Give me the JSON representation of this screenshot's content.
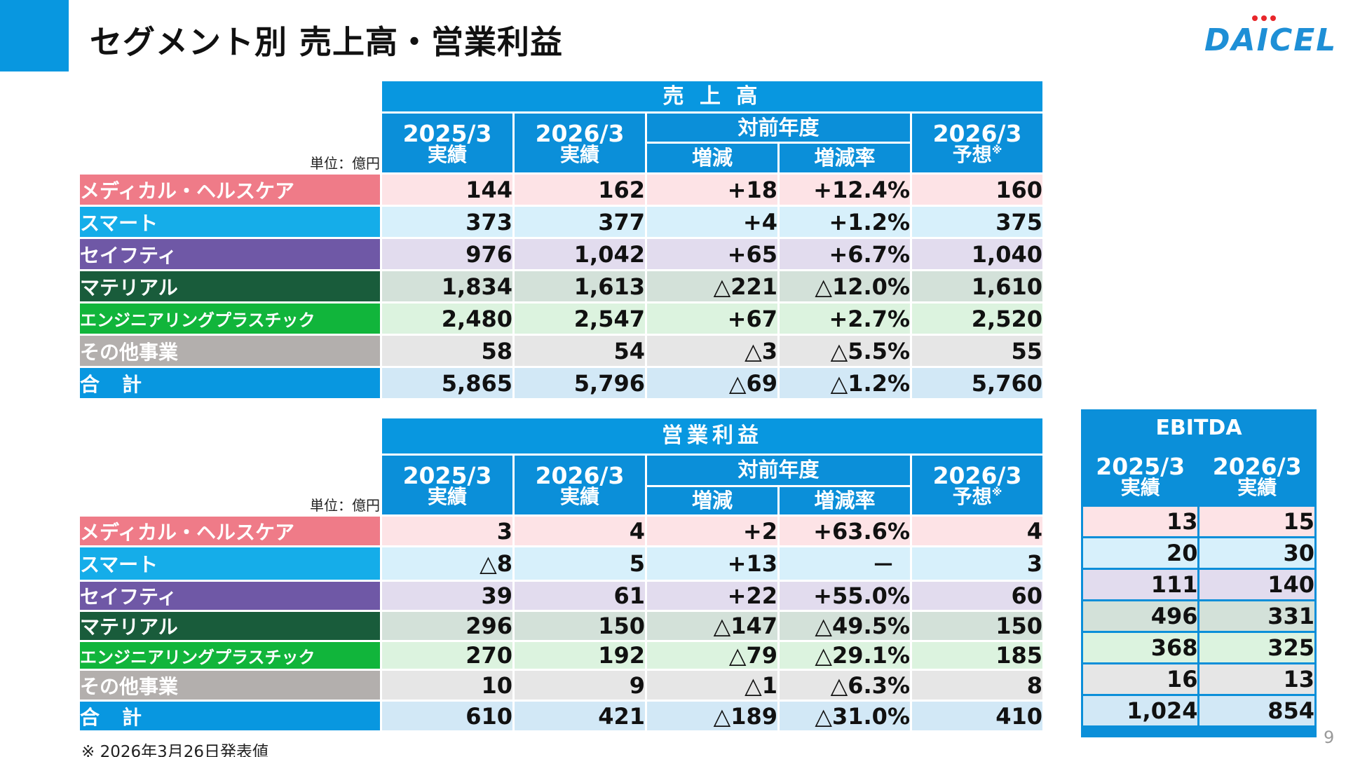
{
  "title": "セグメント別 売上高・営業利益",
  "logo": {
    "text": "DAICEL"
  },
  "columns": {
    "y2025": "2025/3",
    "y2026": "2026/3",
    "actual": "実績",
    "forecast": "予想",
    "forecast_mark": "※",
    "yoy": "対前年度",
    "change": "増減",
    "change_rate": "増減率"
  },
  "unit": "単位：億円",
  "sales": {
    "title": "売 上 高",
    "rows": [
      {
        "segment": "メディカル・ヘルスケア",
        "a2025": "144",
        "a2026": "162",
        "chg": "+18",
        "rate": "+12.4%",
        "f2026": "160"
      },
      {
        "segment": "スマート",
        "a2025": "373",
        "a2026": "377",
        "chg": "+4",
        "rate": "+1.2%",
        "f2026": "375"
      },
      {
        "segment": "セイフティ",
        "a2025": "976",
        "a2026": "1,042",
        "chg": "+65",
        "rate": "+6.7%",
        "f2026": "1,040"
      },
      {
        "segment": "マテリアル",
        "a2025": "1,834",
        "a2026": "1,613",
        "chg": "△221",
        "rate": "△12.0%",
        "f2026": "1,610"
      },
      {
        "segment": "エンジニアリングプラスチック",
        "a2025": "2,480",
        "a2026": "2,547",
        "chg": "+67",
        "rate": "+2.7%",
        "f2026": "2,520"
      },
      {
        "segment": "その他事業",
        "a2025": "58",
        "a2026": "54",
        "chg": "△3",
        "rate": "△5.5%",
        "f2026": "55"
      },
      {
        "segment": "合　計",
        "a2025": "5,865",
        "a2026": "5,796",
        "chg": "△69",
        "rate": "△1.2%",
        "f2026": "5,760"
      }
    ]
  },
  "op_income": {
    "title": "営業利益",
    "rows": [
      {
        "segment": "メディカル・ヘルスケア",
        "a2025": "3",
        "a2026": "4",
        "chg": "+2",
        "rate": "+63.6%",
        "f2026": "4"
      },
      {
        "segment": "スマート",
        "a2025": "△8",
        "a2026": "5",
        "chg": "+13",
        "rate": "－",
        "f2026": "3"
      },
      {
        "segment": "セイフティ",
        "a2025": "39",
        "a2026": "61",
        "chg": "+22",
        "rate": "+55.0%",
        "f2026": "60"
      },
      {
        "segment": "マテリアル",
        "a2025": "296",
        "a2026": "150",
        "chg": "△147",
        "rate": "△49.5%",
        "f2026": "150"
      },
      {
        "segment": "エンジニアリングプラスチック",
        "a2025": "270",
        "a2026": "192",
        "chg": "△79",
        "rate": "△29.1%",
        "f2026": "185"
      },
      {
        "segment": "その他事業",
        "a2025": "10",
        "a2026": "9",
        "chg": "△1",
        "rate": "△6.3%",
        "f2026": "8"
      },
      {
        "segment": "合　計",
        "a2025": "610",
        "a2026": "421",
        "chg": "△189",
        "rate": "△31.0%",
        "f2026": "410"
      }
    ]
  },
  "ebitda": {
    "title": "EBITDA",
    "rows": [
      {
        "a2025": "13",
        "a2026": "15"
      },
      {
        "a2025": "20",
        "a2026": "30"
      },
      {
        "a2025": "111",
        "a2026": "140"
      },
      {
        "a2025": "496",
        "a2026": "331"
      },
      {
        "a2025": "368",
        "a2026": "325"
      },
      {
        "a2025": "16",
        "a2026": "13"
      },
      {
        "a2025": "1,024",
        "a2026": "854"
      }
    ]
  },
  "footnote": "※ 2026年3月26日発表値",
  "page_number": "9"
}
